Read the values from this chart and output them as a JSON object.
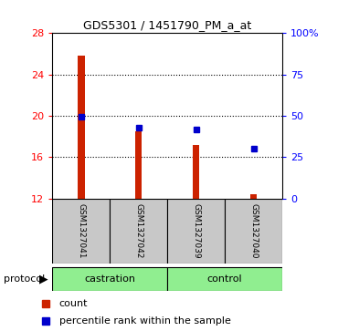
{
  "title": "GDS5301 / 1451790_PM_a_at",
  "samples": [
    "GSM1327041",
    "GSM1327042",
    "GSM1327039",
    "GSM1327040"
  ],
  "count_values": [
    25.8,
    18.5,
    17.2,
    12.4
  ],
  "percentile_values": [
    49.5,
    43.0,
    41.5,
    30.0
  ],
  "ylim_left": [
    12,
    28
  ],
  "ylim_right": [
    0,
    100
  ],
  "yticks_left": [
    12,
    16,
    20,
    24,
    28
  ],
  "yticks_right": [
    0,
    25,
    50,
    75,
    100
  ],
  "ytick_labels_right": [
    "0",
    "25",
    "50",
    "75",
    "100%"
  ],
  "bar_color": "#CC2200",
  "marker_color": "#0000CC",
  "dotted_line_y": [
    16,
    20,
    24
  ],
  "legend_items": [
    {
      "label": "count",
      "color": "#CC2200"
    },
    {
      "label": "percentile rank within the sample",
      "color": "#0000CC"
    }
  ],
  "protocol_label": "protocol",
  "panel_bg": "#C8C8C8",
  "group_panel_color": "#90EE90",
  "bar_width": 0.12
}
